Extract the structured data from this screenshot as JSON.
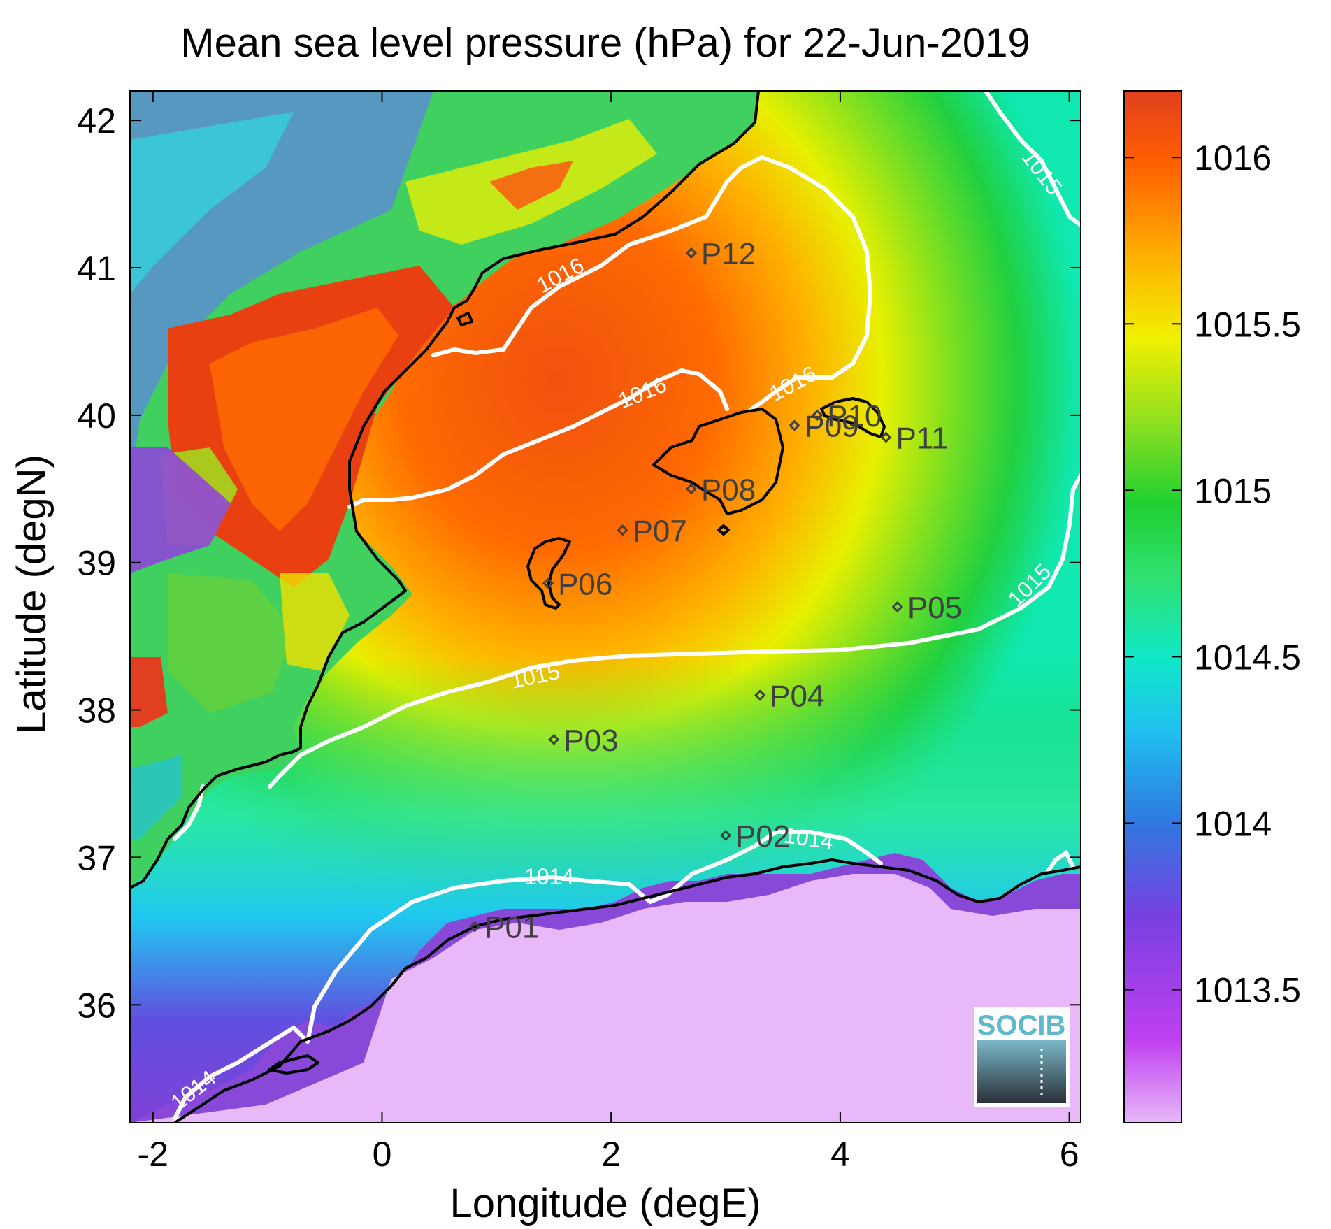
{
  "title": "Mean sea level pressure (hPa) for 22-Jun-2019",
  "map": {
    "xlabel": "Longitude (degE)",
    "ylabel": "Latitude (degN)",
    "xlim": [
      -2.2,
      6.1
    ],
    "ylim": [
      35.2,
      42.2
    ],
    "xticks": [
      -2,
      0,
      2,
      4,
      6
    ],
    "yticks": [
      36,
      37,
      38,
      39,
      40,
      41,
      42
    ],
    "stations": [
      {
        "label": "P01",
        "lon": 0.81,
        "lat": 36.53
      },
      {
        "label": "P02",
        "lon": 3.0,
        "lat": 37.15
      },
      {
        "label": "P03",
        "lon": 1.5,
        "lat": 37.8
      },
      {
        "label": "P04",
        "lon": 3.3,
        "lat": 38.1
      },
      {
        "label": "P05",
        "lon": 4.5,
        "lat": 38.7
      },
      {
        "label": "P06",
        "lon": 1.45,
        "lat": 38.86
      },
      {
        "label": "P07",
        "lon": 2.1,
        "lat": 39.22
      },
      {
        "label": "P08",
        "lon": 2.7,
        "lat": 39.5
      },
      {
        "label": "P09",
        "lon": 3.6,
        "lat": 39.93
      },
      {
        "label": "P10",
        "lon": 3.8,
        "lat": 40.0
      },
      {
        "label": "P11",
        "lon": 4.4,
        "lat": 39.85
      },
      {
        "label": "P12",
        "lon": 2.7,
        "lat": 41.1
      }
    ],
    "contours": [
      {
        "level": "1016",
        "label": "1016"
      },
      {
        "level": "1015",
        "label": "1015"
      },
      {
        "level": "1014",
        "label": "1014"
      }
    ],
    "logo": "SOCIB"
  },
  "colorbar": {
    "range": [
      1013.1,
      1016.2
    ],
    "ticks": [
      {
        "value": 1013.5,
        "label": "1013.5"
      },
      {
        "value": 1014,
        "label": "1014"
      },
      {
        "value": 1014.5,
        "label": "1014.5"
      },
      {
        "value": 1015,
        "label": "1015"
      },
      {
        "value": 1015.5,
        "label": "1015.5"
      },
      {
        "value": 1016,
        "label": "1016"
      }
    ],
    "colors": [
      "#e8b8f8",
      "#c040f0",
      "#8040e0",
      "#3070e0",
      "#20c0f0",
      "#10e8c8",
      "#30e070",
      "#20d030",
      "#80e020",
      "#e8f000",
      "#ffc000",
      "#ff7000",
      "#e04020"
    ]
  }
}
